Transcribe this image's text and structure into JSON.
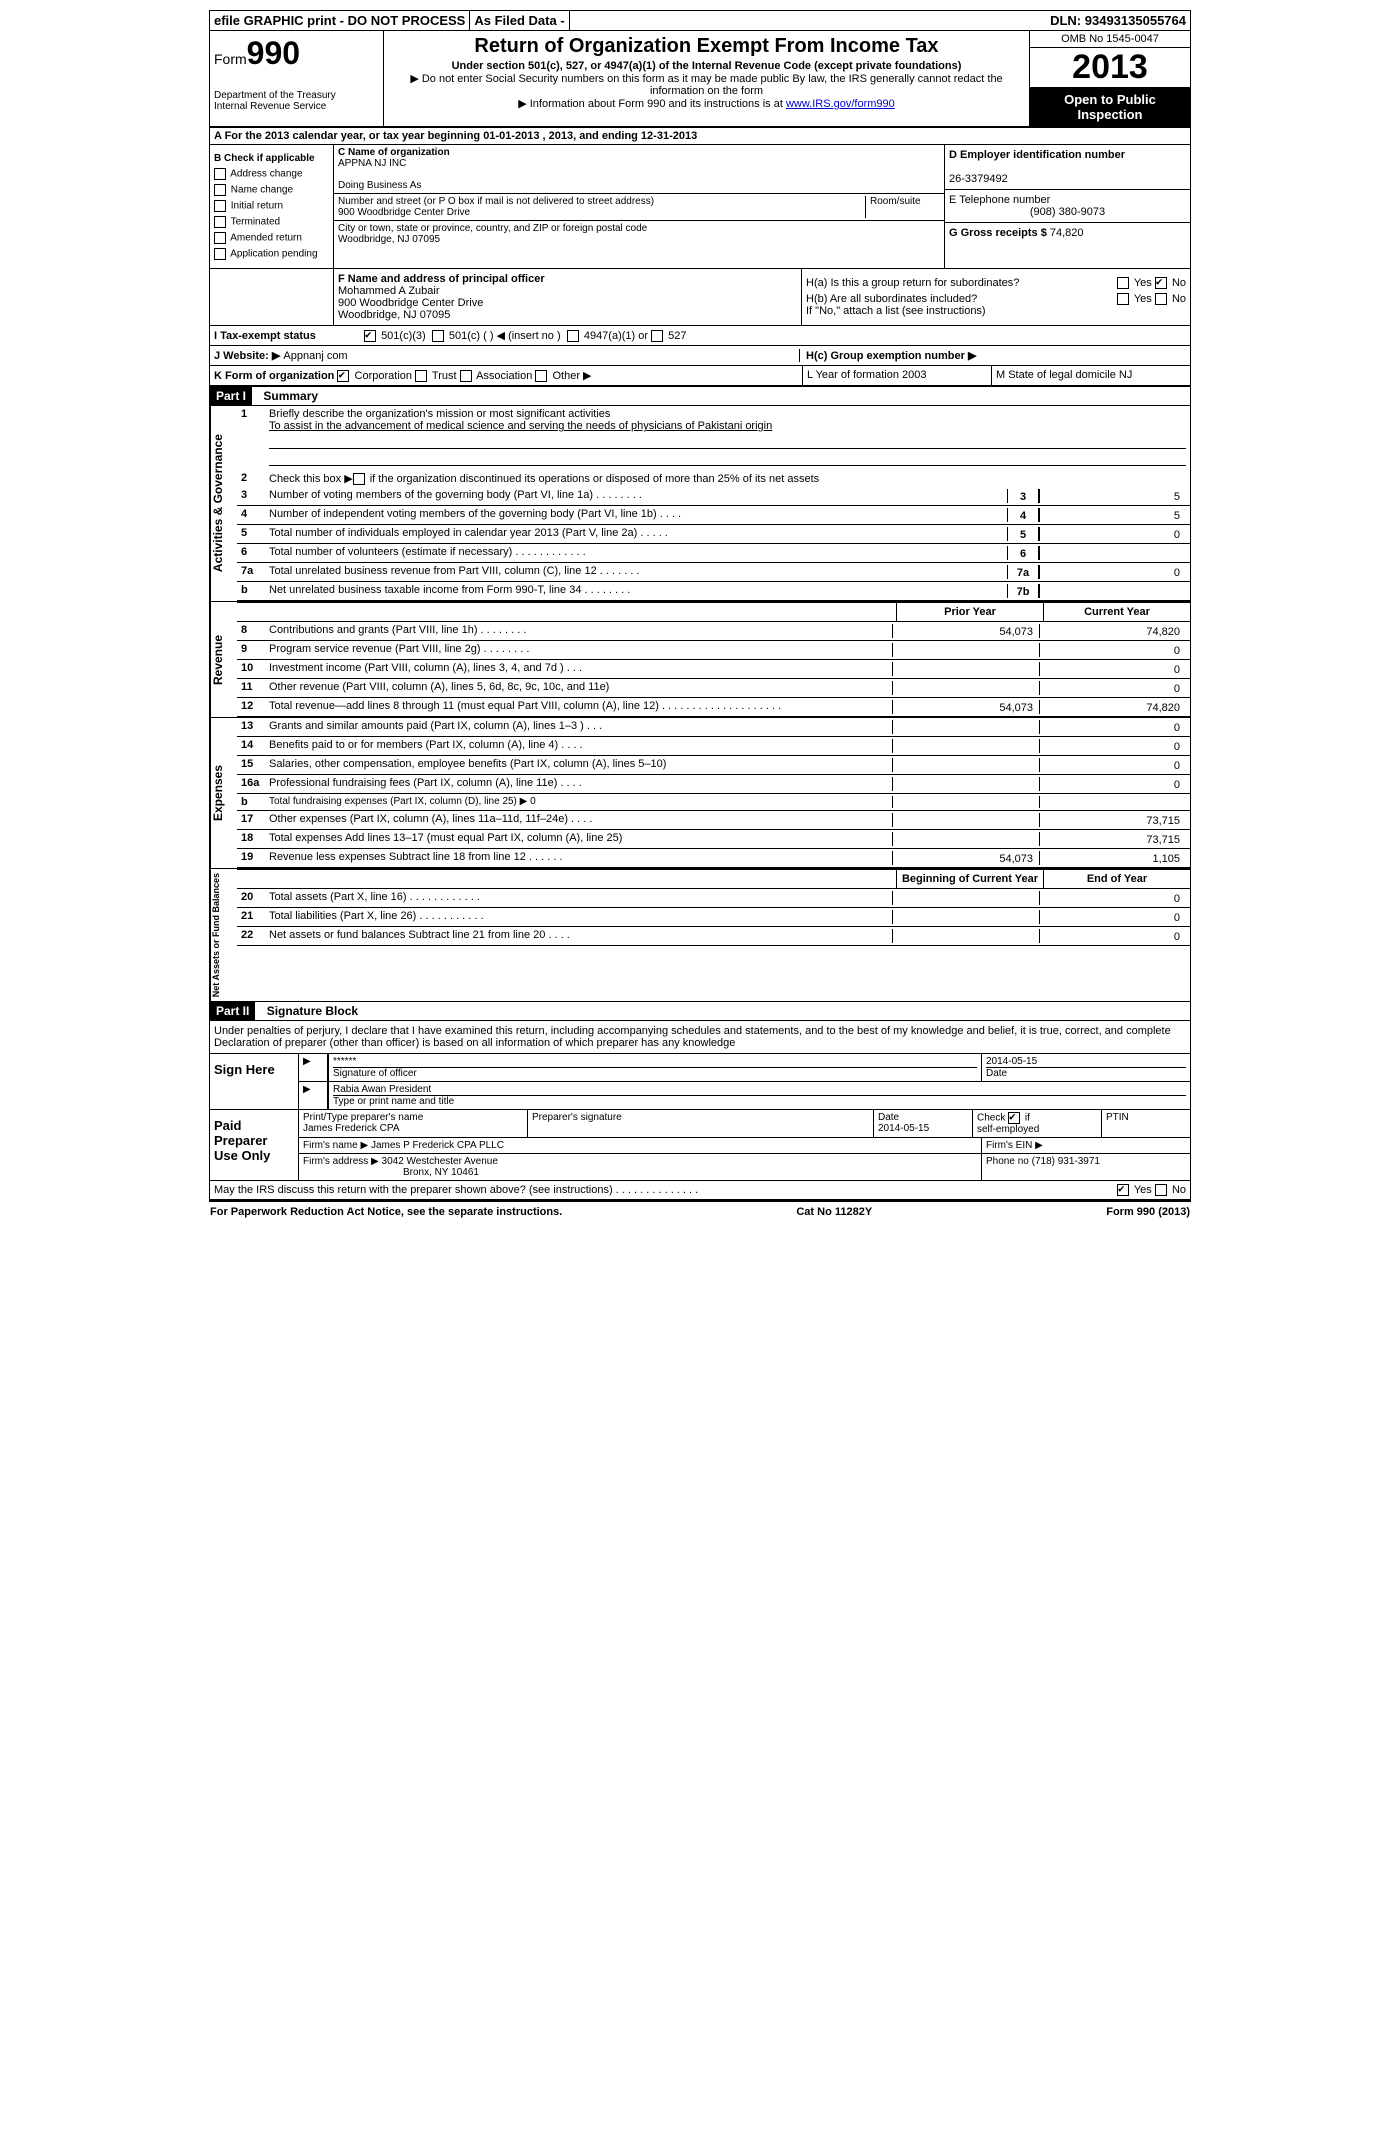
{
  "topbar": {
    "efile": "efile GRAPHIC print - DO NOT PROCESS",
    "asfiled": "As Filed Data -",
    "dln_label": "DLN:",
    "dln": "93493135055764"
  },
  "header": {
    "form_label": "Form",
    "form_num": "990",
    "dept1": "Department of the Treasury",
    "dept2": "Internal Revenue Service",
    "title": "Return of Organization Exempt From Income Tax",
    "subtitle": "Under section 501(c), 527, or 4947(a)(1) of the Internal Revenue Code (except private foundations)",
    "note1": "▶ Do not enter Social Security numbers on this form as it may be made public  By law, the IRS generally cannot redact the information on the form",
    "note2_pre": "▶ Information about Form 990 and its instructions is at ",
    "note2_link": "www.IRS.gov/form990",
    "omb": "OMB No  1545-0047",
    "year": "2013",
    "open": "Open to Public Inspection"
  },
  "rowA": "A  For the 2013 calendar year, or tax year beginning 01-01-2013    , 2013, and ending 12-31-2013",
  "colB": {
    "label": "B  Check if applicable",
    "items": [
      "Address change",
      "Name change",
      "Initial return",
      "Terminated",
      "Amended return",
      "Application pending"
    ]
  },
  "colC": {
    "name_label": "C Name of organization",
    "name": "APPNA NJ INC",
    "dba_label": "Doing Business As",
    "addr_label": "Number and street (or P O  box if mail is not delivered to street address)",
    "room_label": "Room/suite",
    "addr": "900 Woodbridge Center Drive",
    "city_label": "City or town, state or province, country, and ZIP or foreign postal code",
    "city": "Woodbridge, NJ  07095"
  },
  "colD": {
    "ein_label": "D Employer identification number",
    "ein": "26-3379492",
    "phone_label": "E Telephone number",
    "phone": "(908) 380-9073",
    "gross_label": "G Gross receipts $",
    "gross": "74,820"
  },
  "colF": {
    "label": "F    Name and address of principal officer",
    "l1": "Mohammed A Zubair",
    "l2": "900 Woodbridge Center Drive",
    "l3": "Woodbridge, NJ  07095"
  },
  "colH": {
    "ha": "H(a)  Is this a group return for subordinates?",
    "hb": "H(b)  Are all subordinates included?",
    "hb_note": "If \"No,\" attach a list  (see instructions)",
    "hc": "H(c)   Group exemption number ▶",
    "yes": "Yes",
    "no": "No"
  },
  "rowI": {
    "label": "I   Tax-exempt status",
    "c3": "501(c)(3)",
    "c": "501(c) (   ) ◀ (insert no )",
    "a4947": "4947(a)(1) or",
    "s527": "527"
  },
  "rowJ": {
    "label": "J   Website: ▶",
    "val": "Appnanj com"
  },
  "rowK": {
    "label": "K Form of organization",
    "corp": "Corporation",
    "trust": "Trust",
    "assoc": "Association",
    "other": "Other ▶",
    "L": "L Year of formation  2003",
    "M": "M State of legal domicile  NJ"
  },
  "partI": {
    "title": "Part I",
    "name": "Summary"
  },
  "governance": {
    "label": "Activities & Governance",
    "l1a": "Briefly describe the organization's mission or most significant activities",
    "l1b": "To assist in the advancement of medical science and serving the needs of physicians of Pakistani origin",
    "l2": "Check this box ▶      if the organization discontinued its operations or disposed of more than 25% of its net assets",
    "rows": [
      {
        "n": "3",
        "d": "Number of voting members of the governing body (Part VI, line 1a)   .    .    .    .    .    .    .    .",
        "b": "3",
        "v": "5"
      },
      {
        "n": "4",
        "d": "Number of independent voting members of the governing body (Part VI, line 1b)    .    .    .    .",
        "b": "4",
        "v": "5"
      },
      {
        "n": "5",
        "d": "Total number of individuals employed in calendar year 2013 (Part V, line 2a)   .    .    .    .    .",
        "b": "5",
        "v": "0"
      },
      {
        "n": "6",
        "d": "Total number of volunteers (estimate if necessary)   .    .    .    .    .    .    .    .    .    .    .    .",
        "b": "6",
        "v": ""
      },
      {
        "n": "7a",
        "d": "Total unrelated business revenue from Part VIII, column (C), line 12   .    .    .    .    .    .    .",
        "b": "7a",
        "v": "0"
      },
      {
        "n": "b",
        "d": "Net unrelated business taxable income from Form 990-T, line 34   .    .    .    .    .    .    .    .",
        "b": "7b",
        "v": ""
      }
    ]
  },
  "fincols": {
    "py": "Prior Year",
    "cy": "Current Year"
  },
  "revenue": {
    "label": "Revenue",
    "rows": [
      {
        "n": "8",
        "d": "Contributions and grants (Part VIII, line 1h)   .    .    .    .    .    .    .    .",
        "py": "54,073",
        "cy": "74,820"
      },
      {
        "n": "9",
        "d": "Program service revenue (Part VIII, line 2g)   .    .    .    .    .    .    .    .",
        "py": "",
        "cy": "0"
      },
      {
        "n": "10",
        "d": "Investment income (Part VIII, column (A), lines 3, 4, and 7d )   .    .    .",
        "py": "",
        "cy": "0"
      },
      {
        "n": "11",
        "d": "Other revenue (Part VIII, column (A), lines 5, 6d, 8c, 9c, 10c, and 11e)",
        "py": "",
        "cy": "0"
      },
      {
        "n": "12",
        "d": "Total revenue—add lines 8 through 11 (must equal Part VIII, column (A), line 12) .    .    .    .    .    .    .    .    .    .    .    .    .    .    .    .    .    .    .    .",
        "py": "54,073",
        "cy": "74,820"
      }
    ]
  },
  "expenses": {
    "label": "Expenses",
    "rows": [
      {
        "n": "13",
        "d": "Grants and similar amounts paid (Part IX, column (A), lines 1–3 )   .    .    .",
        "py": "",
        "cy": "0"
      },
      {
        "n": "14",
        "d": "Benefits paid to or for members (Part IX, column (A), line 4)   .    .    .    .",
        "py": "",
        "cy": "0"
      },
      {
        "n": "15",
        "d": "Salaries, other compensation, employee benefits (Part IX, column (A), lines 5–10)",
        "py": "",
        "cy": "0"
      },
      {
        "n": "16a",
        "d": "Professional fundraising fees (Part IX, column (A), line 11e)   .    .    .    .",
        "py": "",
        "cy": "0"
      },
      {
        "n": "b",
        "d": "Total fundraising expenses (Part IX, column (D), line 25) ▶ 0",
        "py": "",
        "cy": ""
      },
      {
        "n": "17",
        "d": "Other expenses (Part IX, column (A), lines 11a–11d, 11f–24e)   .    .    .    .",
        "py": "",
        "cy": "73,715"
      },
      {
        "n": "18",
        "d": "Total expenses  Add lines 13–17 (must equal Part IX, column (A), line 25)",
        "py": "",
        "cy": "73,715"
      },
      {
        "n": "19",
        "d": "Revenue less expenses  Subtract line 18 from line 12   .    .    .    .    .    .",
        "py": "54,073",
        "cy": "1,105"
      }
    ]
  },
  "netassets": {
    "label": "Net Assets or Fund Balances",
    "hdr_py": "Beginning of Current Year",
    "hdr_cy": "End of Year",
    "rows": [
      {
        "n": "20",
        "d": "Total assets (Part X, line 16)   .    .    .    .    .    .    .    .    .    .    .    .",
        "py": "",
        "cy": "0"
      },
      {
        "n": "21",
        "d": "Total liabilities (Part X, line 26)   .    .    .    .    .    .    .    .    .    .    .",
        "py": "",
        "cy": "0"
      },
      {
        "n": "22",
        "d": "Net assets or fund balances  Subtract line 21 from line 20   .    .    .    .",
        "py": "",
        "cy": "0"
      }
    ]
  },
  "partII": {
    "title": "Part II",
    "name": "Signature Block",
    "perjury": "Under penalties of perjury, I declare that I have examined this return, including accompanying schedules and statements, and to the best of my knowledge and belief, it is true, correct, and complete  Declaration of preparer (other than officer) is based on all information of which preparer has any knowledge"
  },
  "sign": {
    "here": "Sign Here",
    "stars": "******",
    "sigoff": "Signature of officer",
    "date": "2014-05-15",
    "date_lbl": "Date",
    "name": "Rabia Awan President",
    "name_lbl": "Type or print name and title"
  },
  "paid": {
    "label": "Paid Preparer Use Only",
    "pt_lbl": "Print/Type preparer's name",
    "pt_name": "James Frederick CPA",
    "sig_lbl": "Preparer's signature",
    "date_lbl": "Date",
    "date": "2014-05-15",
    "self_lbl": "Check        if self-employed",
    "ptin": "PTIN",
    "firm_name_lbl": "Firm's name     ▶",
    "firm_name": "James P Frederick CPA PLLC",
    "firm_ein_lbl": "Firm's EIN ▶",
    "firm_addr_lbl": "Firm's address ▶",
    "firm_addr1": "3042 Westchester Avenue",
    "firm_addr2": "Bronx, NY  10461",
    "phone_lbl": "Phone no",
    "phone": "(718) 931-3971"
  },
  "discuss": {
    "q": "May the IRS discuss this return with the preparer shown above? (see instructions)   .    .    .    .    .    .    .    .    .    .    .    .    .    .",
    "yes": "Yes",
    "no": "No"
  },
  "footer": {
    "left": "For Paperwork Reduction Act Notice, see the separate instructions.",
    "mid": "Cat  No  11282Y",
    "right": "Form 990 (2013)"
  }
}
